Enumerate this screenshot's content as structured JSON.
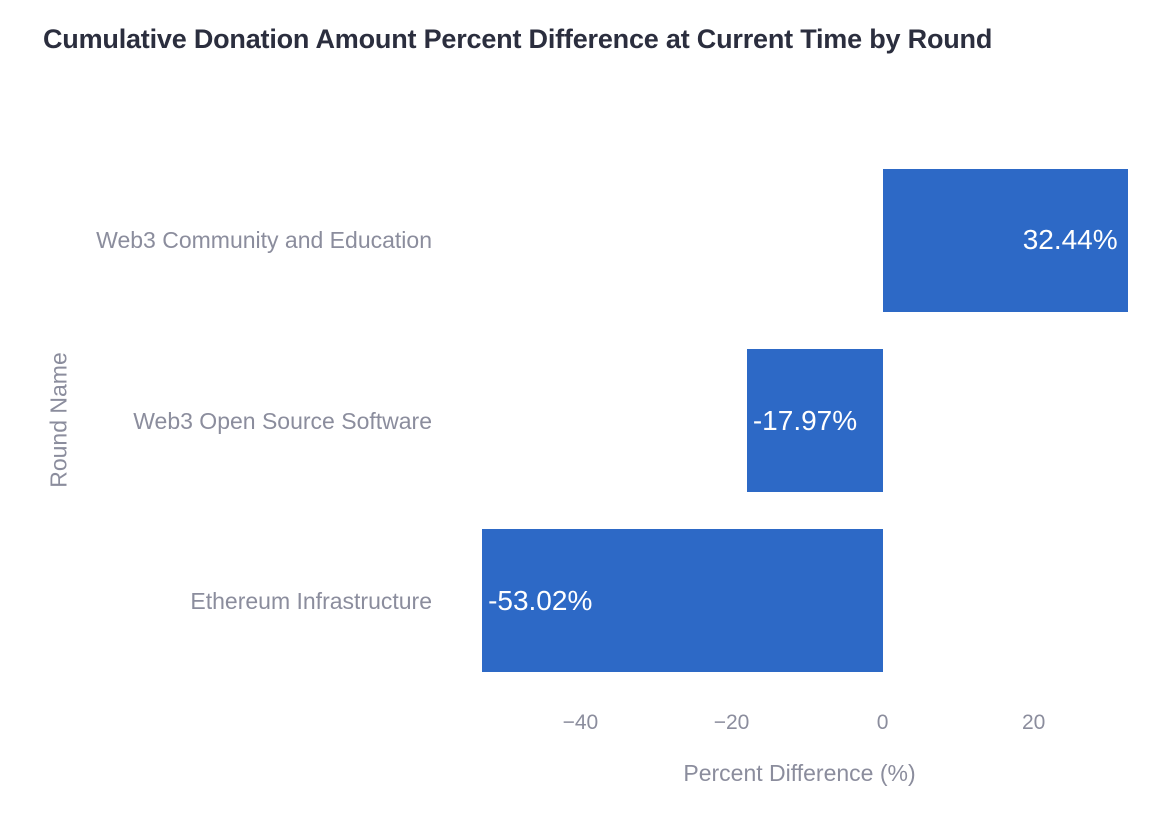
{
  "title": "Cumulative Donation Amount Percent Difference at Current Time by Round",
  "colors": {
    "background": "#ffffff",
    "bar": "#2d69c6",
    "title_text": "#2b2e3e",
    "axis_text": "#8b8d9d",
    "bar_label_text": "#ffffff"
  },
  "chart_data": {
    "type": "bar",
    "orientation": "horizontal",
    "title": "Cumulative Donation Amount Percent Difference at Current Time by Round",
    "categories": [
      "Web3 Community and Education",
      "Web3 Open Source Software",
      "Ethereum Infrastructure"
    ],
    "values": [
      32.44,
      -17.97,
      -53.02
    ],
    "bar_labels": [
      "32.44%",
      "-17.97%",
      "-53.02%"
    ],
    "xlabel": "Percent Difference (%)",
    "ylabel": "Round Name",
    "xticks": [
      -40,
      -20,
      0,
      20
    ],
    "xtick_labels": [
      "−40",
      "−20",
      "0",
      "20"
    ],
    "xlim": [
      -57,
      35
    ],
    "grid": false,
    "legend": false,
    "bar_label_position_positive": "inside-right",
    "bar_label_position_negative": "inside-left"
  }
}
